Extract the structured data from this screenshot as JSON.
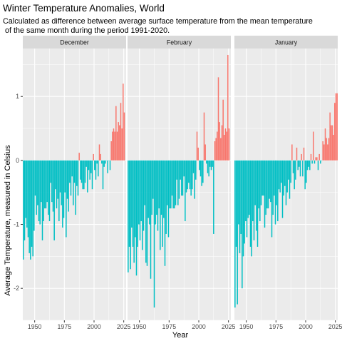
{
  "chart_data": {
    "type": "bar",
    "title": "Winter Temperature Anomalies, World",
    "subtitle": "Calculated as difference between average surface temperature from the mean temperature\n of the same month during the period 1991-2020.",
    "xlabel": "Year",
    "ylabel": "Average Temperature, measured in Celsius",
    "xlim": [
      1940,
      2027
    ],
    "xticks": [
      1950,
      1975,
      2000,
      2025
    ],
    "ylim": [
      -2.5,
      1.75
    ],
    "yticks": [
      -2,
      -1,
      0,
      1
    ],
    "grid": true,
    "legend": "none",
    "colors": {
      "positive": "#F8766D",
      "negative": "#00BFC4",
      "panel_bg": "#EBEBEB",
      "strip_bg": "#D9D9D9",
      "grid": "#FFFFFF"
    },
    "panels": [
      {
        "label": "December",
        "start_year": 1940,
        "values": [
          -1.55,
          -1.25,
          -0.9,
          -1.05,
          -1.2,
          -1.45,
          -1.55,
          -1.35,
          -1.5,
          -1.1,
          -0.55,
          -0.85,
          -0.7,
          -0.95,
          -1.0,
          -0.65,
          -1.25,
          -0.95,
          -0.75,
          -0.75,
          -0.65,
          -0.85,
          -0.95,
          -0.35,
          -0.65,
          -0.8,
          -1.25,
          -0.45,
          -0.75,
          -0.6,
          -0.95,
          -0.5,
          -0.7,
          -1.05,
          -0.9,
          -0.5,
          -1.2,
          -0.6,
          -0.8,
          -0.35,
          -0.55,
          -0.25,
          -0.7,
          -0.35,
          -0.85,
          -0.4,
          -0.55,
          0.12,
          -0.3,
          -0.35,
          -0.45,
          -0.45,
          -0.35,
          -0.1,
          -0.5,
          -0.15,
          -0.3,
          -0.2,
          -0.45,
          0.1,
          -0.15,
          -0.3,
          -0.05,
          -0.25,
          0.25,
          0.1,
          -0.05,
          -0.45,
          -0.1,
          -0.05,
          0.0,
          -0.2,
          0.0,
          -0.15,
          0.3,
          0.45,
          0.5,
          0.45,
          0.85,
          0.45,
          0.6,
          0.55,
          0.9,
          0.5,
          1.2,
          0.75
        ]
      },
      {
        "label": "February",
        "start_year": 1940,
        "values": [
          -1.75,
          -1.35,
          -1.7,
          -1.05,
          -1.35,
          -1.6,
          -1.2,
          -1.8,
          -1.35,
          -1.0,
          -1.25,
          -0.95,
          -1.4,
          -1.1,
          -0.7,
          -1.6,
          -1.65,
          -0.9,
          -1.0,
          -1.85,
          -0.85,
          -0.6,
          -2.3,
          -1.0,
          -0.85,
          -1.1,
          -0.75,
          -1.4,
          -0.85,
          -1.35,
          -0.9,
          -1.65,
          -1.15,
          -0.7,
          -1.2,
          -0.75,
          -0.75,
          -0.55,
          -0.75,
          -0.75,
          -0.7,
          -0.3,
          -0.7,
          -0.6,
          -0.3,
          -0.55,
          -0.55,
          -0.25,
          -0.95,
          -0.5,
          -0.45,
          -0.35,
          -0.45,
          -0.55,
          -0.45,
          -0.2,
          -0.6,
          -0.3,
          0.45,
          0.2,
          -0.15,
          -0.25,
          -0.4,
          -0.35,
          0.75,
          0.25,
          -0.05,
          -0.2,
          -0.25,
          -0.1,
          -0.15,
          -0.1,
          -1.15,
          0.3,
          0.35,
          0.45,
          1.3,
          0.6,
          0.35,
          0.55,
          0.95,
          0.4,
          0.5,
          0.45,
          1.65,
          0.5
        ]
      },
      {
        "label": "January",
        "start_year": 1940,
        "values": [
          -2.3,
          -1.35,
          -2.25,
          -1.0,
          -1.45,
          -1.15,
          -2.0,
          -1.5,
          -1.3,
          -0.95,
          -1.2,
          -0.9,
          -0.85,
          -1.35,
          -1.5,
          -0.95,
          -1.25,
          -0.7,
          -1.1,
          -1.35,
          -0.75,
          -0.95,
          -0.7,
          -0.55,
          -0.55,
          -1.05,
          -0.85,
          -0.75,
          -0.75,
          -0.6,
          -0.65,
          -1.2,
          -0.85,
          -0.55,
          -1.0,
          -0.7,
          -0.95,
          -0.45,
          -0.5,
          -0.35,
          -0.9,
          -0.55,
          -0.4,
          -0.7,
          -0.5,
          -0.3,
          -0.6,
          -0.35,
          0.25,
          -0.2,
          -0.45,
          -0.3,
          0.2,
          -0.15,
          -0.1,
          -0.25,
          0.1,
          -0.25,
          0.2,
          -0.45,
          -0.35,
          -0.15,
          -0.1,
          -0.15,
          0.1,
          -0.05,
          0.45,
          -0.05,
          0.05,
          0.05,
          -0.15,
          0.1,
          -0.05,
          0.0,
          0.3,
          0.25,
          0.5,
          0.35,
          0.25,
          0.35,
          0.75,
          0.55,
          0.55,
          0.4,
          0.9,
          1.05,
          1.05
        ]
      }
    ]
  }
}
